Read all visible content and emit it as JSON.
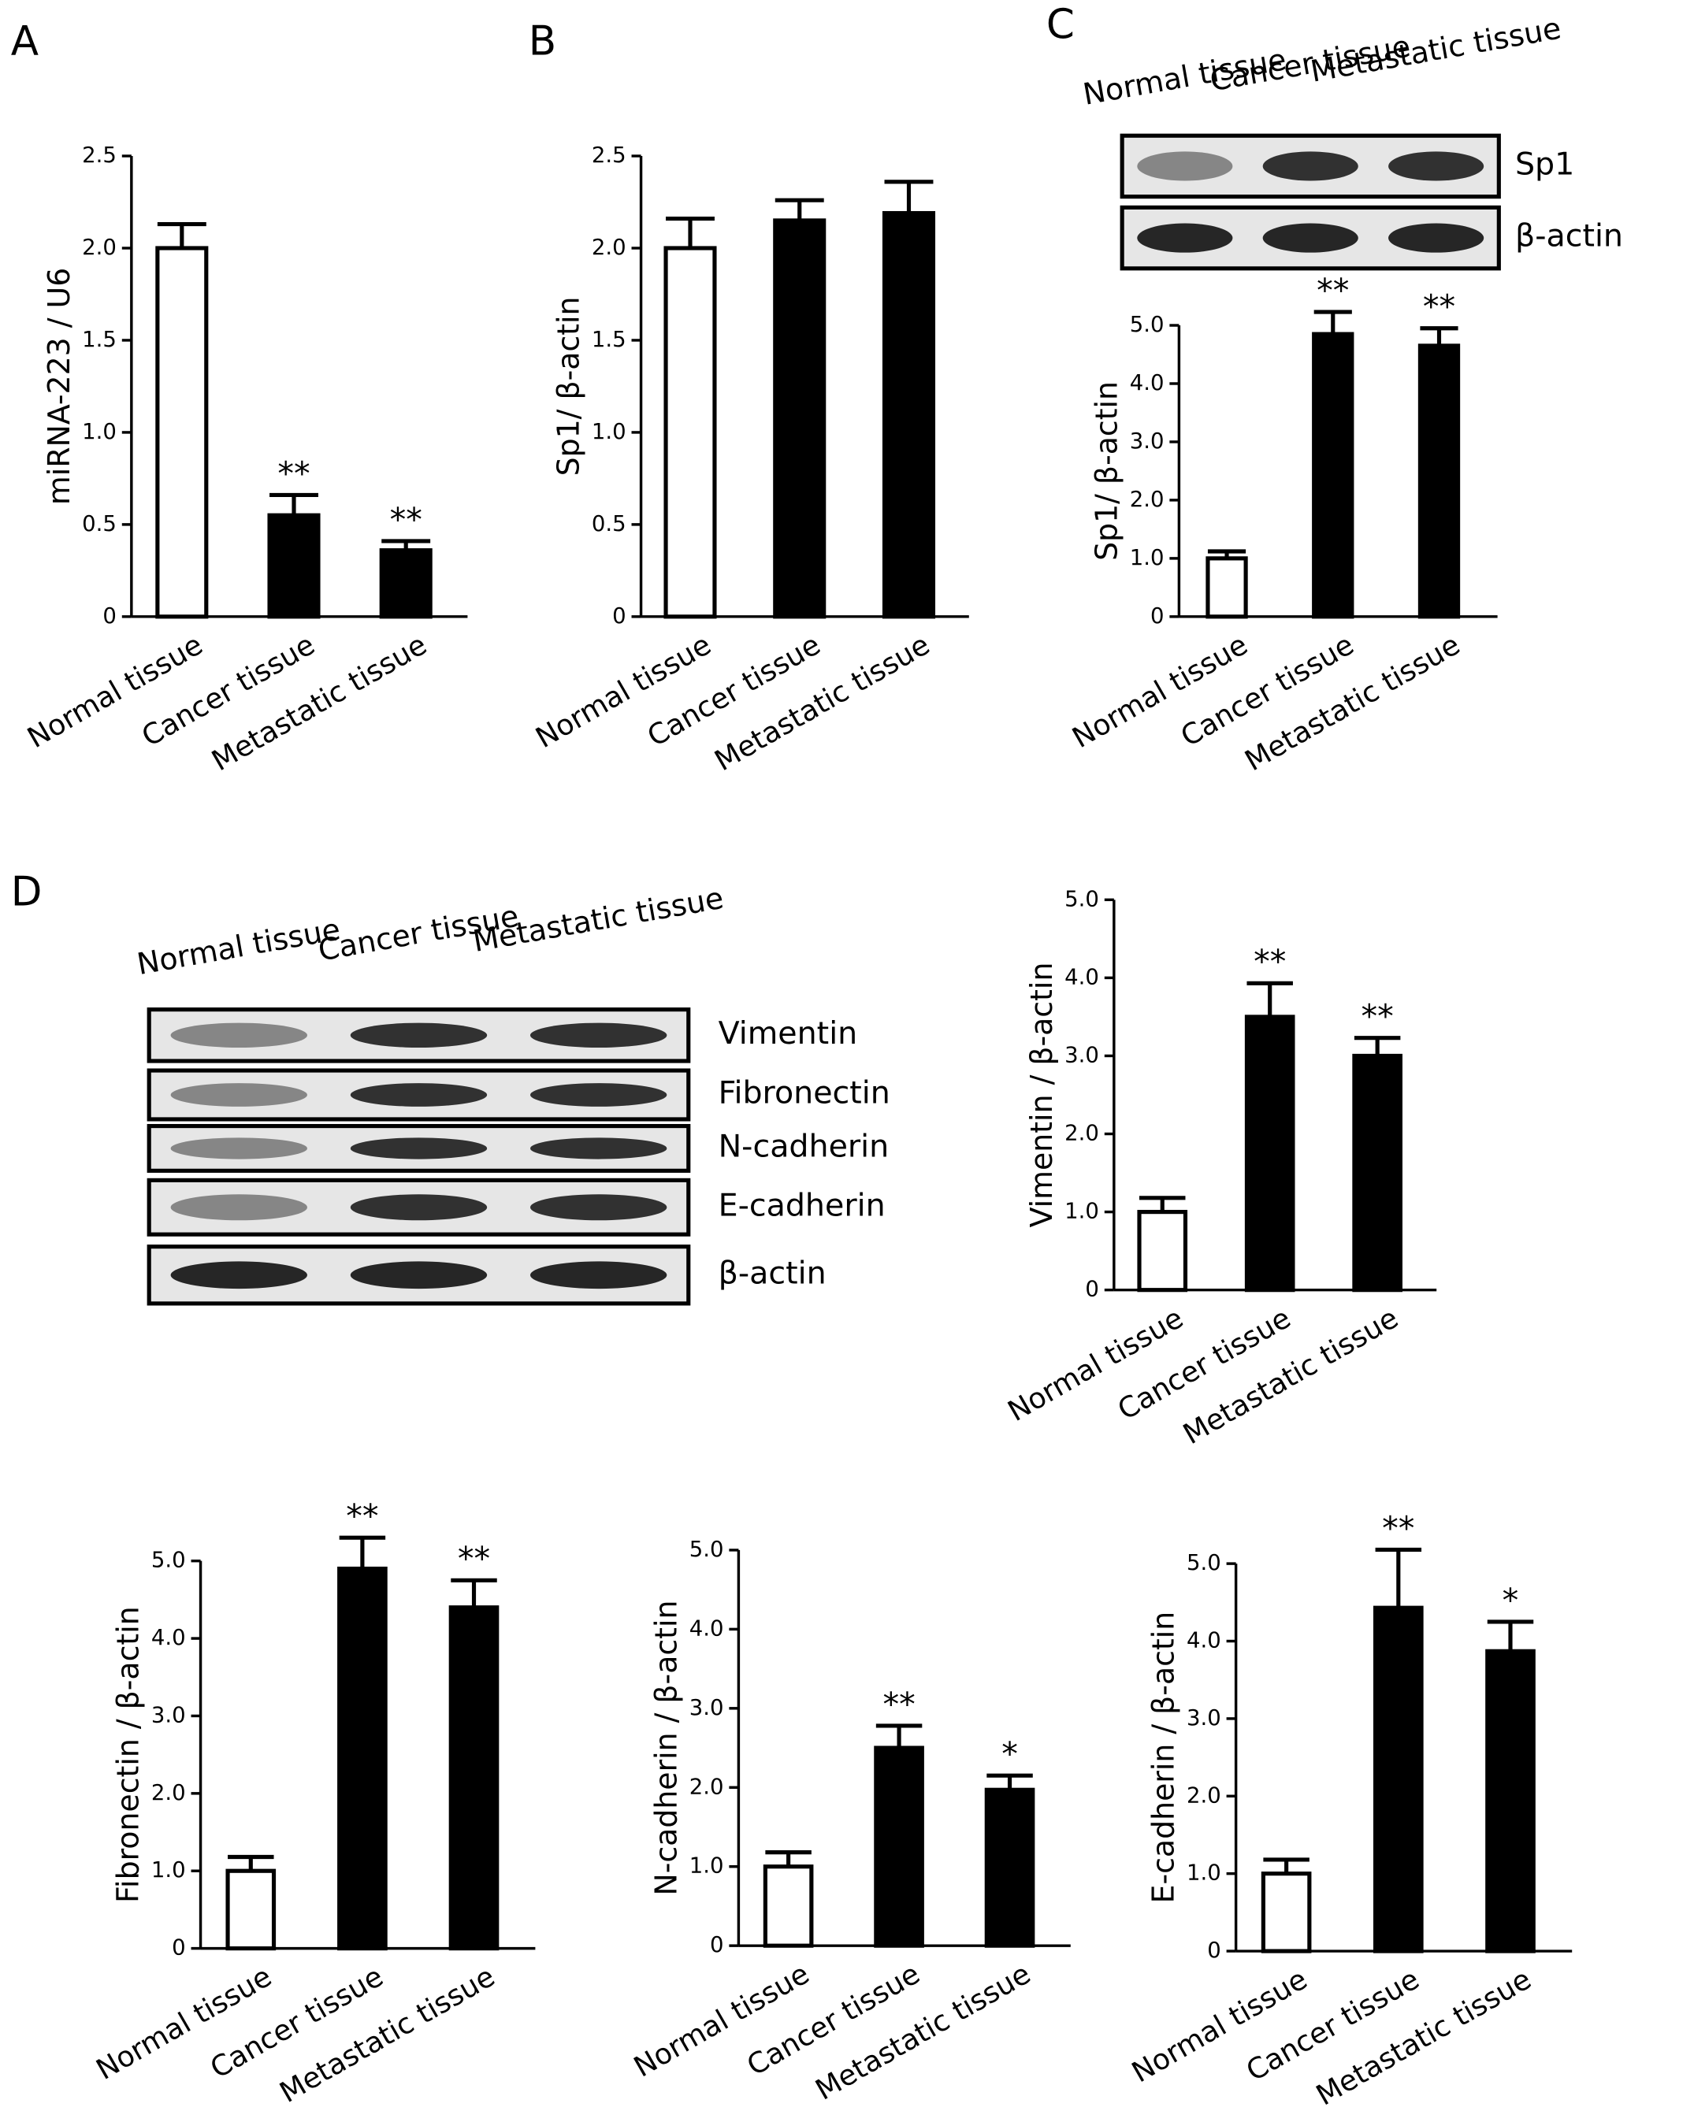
{
  "chart_data": [
    {
      "type": "bar",
      "panel": "A",
      "ylabel": "miRNA-223 / U6",
      "categories": [
        "Normal tissue",
        "Cancer tissue",
        "Metastatic tissue"
      ],
      "values": [
        2.0,
        0.55,
        0.36
      ],
      "errors": [
        0.13,
        0.11,
        0.05
      ],
      "colors": [
        "#ffffff",
        "#000000",
        "#000000"
      ],
      "annotations": [
        null,
        "**",
        "**"
      ],
      "ylim": [
        0,
        2.5
      ],
      "yticks": [
        0,
        0.5,
        {
          "value": 1,
          "label": "1.0"
        },
        1.5,
        {
          "value": 2,
          "label": "2.0"
        },
        2.5
      ]
    },
    {
      "type": "bar",
      "panel": "B",
      "ylabel": "Sp1/ β-actin",
      "categories": [
        "Normal tissue",
        "Cancer tissue",
        "Metastatic tissue"
      ],
      "values": [
        2.0,
        2.15,
        2.19
      ],
      "errors": [
        0.16,
        0.11,
        0.17
      ],
      "colors": [
        "#ffffff",
        "#000000",
        "#000000"
      ],
      "ylim": [
        0,
        2.5
      ],
      "yticks": [
        0,
        0.5,
        {
          "value": 1,
          "label": "1.0"
        },
        1.5,
        {
          "value": 2,
          "label": "2.0"
        },
        2.5
      ]
    },
    {
      "type": "bar",
      "ylabel": "Sp1/ β-actin",
      "categories": [
        "Normal tissue",
        "Cancer tissue",
        "Metastatic tissue"
      ],
      "values": [
        1.0,
        4.85,
        4.65
      ],
      "errors": [
        0.12,
        0.38,
        0.3
      ],
      "colors": [
        "#ffffff",
        "#000000",
        "#000000"
      ],
      "annotations": [
        null,
        "**",
        "**"
      ],
      "ylim": [
        0,
        5
      ],
      "yticks": [
        0,
        {
          "value": 1,
          "label": "1.0"
        },
        {
          "value": 2,
          "label": "2.0"
        },
        {
          "value": 3,
          "label": "3.0"
        },
        {
          "value": 4,
          "label": "4.0"
        },
        {
          "value": 5,
          "label": "5.0"
        }
      ]
    },
    {
      "type": "bar",
      "ylabel": "Vimentin / β-actin",
      "categories": [
        "Normal tissue",
        "Cancer tissue",
        "Metastatic tissue"
      ],
      "values": [
        1.0,
        3.5,
        3.0
      ],
      "errors": [
        0.18,
        0.43,
        0.23
      ],
      "colors": [
        "#ffffff",
        "#000000",
        "#000000"
      ],
      "annotations": [
        null,
        "**",
        "**"
      ],
      "ylim": [
        0,
        5
      ],
      "yticks": [
        0,
        {
          "value": 1,
          "label": "1.0"
        },
        {
          "value": 2,
          "label": "2.0"
        },
        {
          "value": 3,
          "label": "3.0"
        },
        {
          "value": 4,
          "label": "4.0"
        },
        {
          "value": 5,
          "label": "5.0"
        }
      ]
    },
    {
      "type": "bar",
      "ylabel": "Fibronectin / β-actin",
      "categories": [
        "Normal tissue",
        "Cancer tissue",
        "Metastatic tissue"
      ],
      "values": [
        1.0,
        4.9,
        4.4
      ],
      "errors": [
        0.18,
        0.4,
        0.35
      ],
      "colors": [
        "#ffffff",
        "#000000",
        "#000000"
      ],
      "annotations": [
        null,
        "**",
        "**"
      ],
      "ylim": [
        0,
        5
      ],
      "yticks": [
        0,
        {
          "value": 1,
          "label": "1.0"
        },
        {
          "value": 2,
          "label": "2.0"
        },
        {
          "value": 3,
          "label": "3.0"
        },
        {
          "value": 4,
          "label": "4.0"
        },
        {
          "value": 5,
          "label": "5.0"
        }
      ]
    },
    {
      "type": "bar",
      "ylabel": "N-cadherin / β-actin",
      "categories": [
        "Normal tissue",
        "Cancer tissue",
        "Metastatic tissue"
      ],
      "values": [
        1.0,
        2.5,
        1.97
      ],
      "errors": [
        0.18,
        0.28,
        0.18
      ],
      "colors": [
        "#ffffff",
        "#000000",
        "#000000"
      ],
      "annotations": [
        null,
        "**",
        "*"
      ],
      "ylim": [
        0,
        5
      ],
      "yticks": [
        0,
        {
          "value": 1,
          "label": "1.0"
        },
        {
          "value": 2,
          "label": "2.0"
        },
        {
          "value": 3,
          "label": "3.0"
        },
        {
          "value": 4,
          "label": "4.0"
        },
        {
          "value": 5,
          "label": "5.0"
        }
      ]
    },
    {
      "type": "bar",
      "ylabel": "E-cadherin / β-actin",
      "categories": [
        "Normal tissue",
        "Cancer tissue",
        "Metastatic tissue"
      ],
      "values": [
        1.0,
        4.43,
        3.87
      ],
      "errors": [
        0.18,
        0.75,
        0.38
      ],
      "colors": [
        "#ffffff",
        "#000000",
        "#000000"
      ],
      "annotations": [
        null,
        "**",
        "*"
      ],
      "ylim": [
        0,
        5
      ],
      "yticks": [
        0,
        {
          "value": 1,
          "label": "1.0"
        },
        {
          "value": 2,
          "label": "2.0"
        },
        {
          "value": 3,
          "label": "3.0"
        },
        {
          "value": 4,
          "label": "4.0"
        },
        {
          "value": 5,
          "label": "5.0"
        }
      ]
    }
  ],
  "blots": [
    {
      "panel": "C",
      "lanes": [
        "Normal tissue",
        "Cancer tissue",
        "Metastatic tissue"
      ],
      "bands": [
        "Sp1",
        "β-actin"
      ]
    },
    {
      "panel": "D",
      "lanes": [
        "Normal tissue",
        "Cancer tissue",
        "Metastatic tissue"
      ],
      "bands": [
        "Vimentin",
        "Fibronectin",
        "N-cadherin",
        "E-cadherin",
        "β-actin"
      ]
    }
  ]
}
